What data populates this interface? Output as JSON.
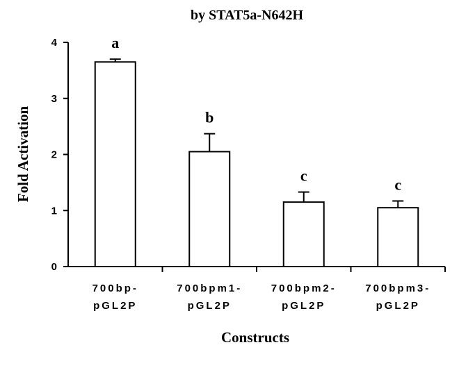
{
  "chart_data": {
    "type": "bar",
    "title": "by STAT5a-N642H",
    "xlabel": "Constructs",
    "ylabel": "Fold Activation",
    "ylim": [
      0,
      4
    ],
    "yticks": [
      "0",
      "1",
      "2",
      "3",
      "4"
    ],
    "categories": [
      {
        "line1": "700bp-",
        "line2": "pGL2P"
      },
      {
        "line1": "700bpm1-",
        "line2": "pGL2P"
      },
      {
        "line1": "700bpm2-",
        "line2": "pGL2P"
      },
      {
        "line1": "700bpm3-",
        "line2": "pGL2P"
      }
    ],
    "values": [
      3.65,
      2.05,
      1.15,
      1.05
    ],
    "errors": [
      0.05,
      0.32,
      0.18,
      0.12
    ],
    "significance": [
      "a",
      "b",
      "c",
      "c"
    ],
    "grid": false,
    "bar_fill": "#ffffff",
    "bar_stroke": "#000000"
  }
}
